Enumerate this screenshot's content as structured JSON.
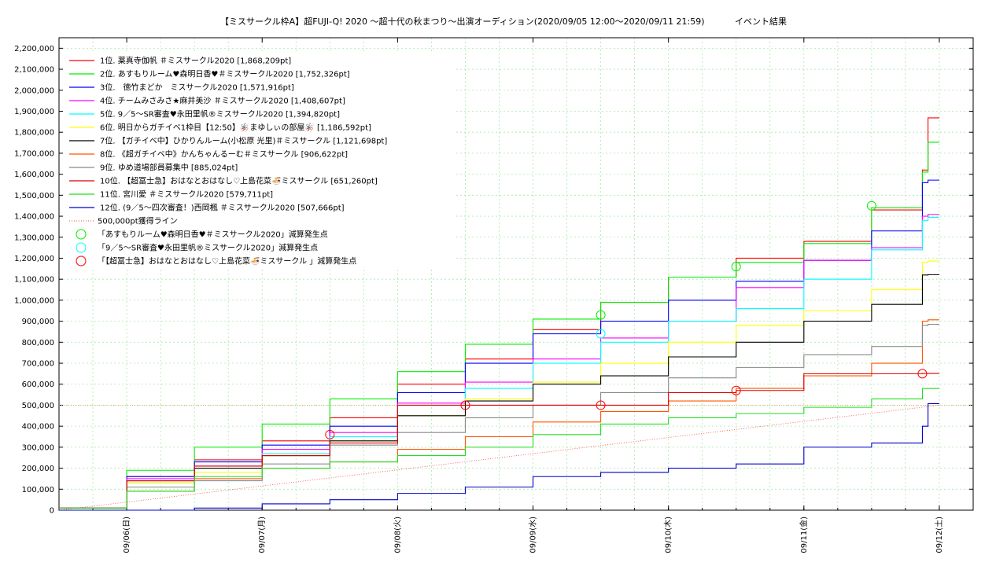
{
  "chart_data": {
    "type": "line",
    "title": "【ミスサークル枠A】超FUJI-Q! 2020 〜超十代の秋まつり〜出演オーディション(2020/09/05 12:00〜2020/09/11 21:59)           イベント結果",
    "xlabel": "",
    "ylabel": "",
    "x_range": [
      "2020/09/05 12:00",
      "2020/09/12 06:00"
    ],
    "ylim": [
      0,
      2250000
    ],
    "y_ticks": [
      0,
      100000,
      200000,
      300000,
      400000,
      500000,
      600000,
      700000,
      800000,
      900000,
      1000000,
      1100000,
      1200000,
      1300000,
      1400000,
      1500000,
      1600000,
      1700000,
      1800000,
      1900000,
      2000000,
      2100000,
      2200000
    ],
    "y_tick_labels": [
      "0",
      "100,000",
      "200,000",
      "300,000",
      "400,000",
      "500,000",
      "600,000",
      "700,000",
      "800,000",
      "900,000",
      "1,000,000",
      "1,100,000",
      "1,200,000",
      "1,300,000",
      "1,400,000",
      "1,500,000",
      "1,600,000",
      "1,700,000",
      "1,800,000",
      "1,900,000",
      "2,000,000",
      "2,100,000",
      "2,200,000"
    ],
    "x_ticks": [
      "2020/09/06",
      "2020/09/07",
      "2020/09/08",
      "2020/09/09",
      "2020/09/10",
      "2020/09/11",
      "2020/09/12"
    ],
    "x_tick_labels": [
      "09/06(日)",
      "09/07(月)",
      "09/08(火)",
      "09/09(水)",
      "09/10(木)",
      "09/11(金)",
      "09/12(土)"
    ],
    "grid": true,
    "legend_position": "top-left",
    "time_points": [
      "2020/09/05 12:00",
      "2020/09/06 00:00",
      "2020/09/06 12:00",
      "2020/09/07 00:00",
      "2020/09/07 12:00",
      "2020/09/08 00:00",
      "2020/09/08 12:00",
      "2020/09/09 00:00",
      "2020/09/09 12:00",
      "2020/09/10 00:00",
      "2020/09/10 12:00",
      "2020/09/11 00:00",
      "2020/09/11 12:00",
      "2020/09/11 21:00",
      "2020/09/11 22:00",
      "2020/09/12 00:00"
    ],
    "series": [
      {
        "name": "1位. 薬真寺伽帆 ＃ミスサークル2020 [1,868,209pt]",
        "color": "#ff0000",
        "values": [
          10000,
          160000,
          240000,
          330000,
          440000,
          600000,
          720000,
          860000,
          990000,
          1110000,
          1200000,
          1280000,
          1430000,
          1620000,
          1868209,
          1868209
        ]
      },
      {
        "name": "2位. あすもりルーム♥森明日香♥＃ミスサークル2020 [1,752,326pt]",
        "color": "#00ee00",
        "values": [
          10000,
          190000,
          300000,
          410000,
          530000,
          660000,
          790000,
          910000,
          990000,
          1110000,
          1180000,
          1270000,
          1440000,
          1610000,
          1752326,
          1752326
        ]
      },
      {
        "name": "3位.　徳竹まどか　ミスサークル2020 [1,571,916pt]",
        "color": "#0000ff",
        "values": [
          10000,
          160000,
          230000,
          310000,
          400000,
          560000,
          700000,
          840000,
          900000,
          1000000,
          1090000,
          1190000,
          1330000,
          1560000,
          1571916,
          1571916
        ]
      },
      {
        "name": "4位. チームみさみさ★麻井美沙 ＃ミスサークル2020 [1,408,607pt]",
        "color": "#ff00ff",
        "values": [
          10000,
          150000,
          210000,
          290000,
          370000,
          510000,
          610000,
          720000,
          820000,
          900000,
          1060000,
          1190000,
          1250000,
          1400000,
          1408607,
          1408607
        ]
      },
      {
        "name": "5位. 9／5〜SR審査♥永田里帆®︎ミスサークル2020 [1,394,820pt]",
        "color": "#00ffff",
        "values": [
          10000,
          130000,
          200000,
          270000,
          350000,
          500000,
          580000,
          700000,
          800000,
          900000,
          960000,
          1100000,
          1240000,
          1380000,
          1394820,
          1394820
        ]
      },
      {
        "name": "6位. 明日からガチイベ1枠目【12:50】🪅まゆしぃの部屋🪅 [1,186,592pt]",
        "color": "#ffff00",
        "values": [
          10000,
          130000,
          180000,
          260000,
          330000,
          450000,
          530000,
          610000,
          700000,
          800000,
          880000,
          950000,
          1050000,
          1180000,
          1186592,
          1186592
        ]
      },
      {
        "name": "7位. 【ガチイベ中】ひかりんルーム(小松原 光里)＃ミスサークル [1,121,698pt]",
        "color": "#000000",
        "values": [
          10000,
          140000,
          200000,
          260000,
          330000,
          450000,
          520000,
          600000,
          640000,
          730000,
          800000,
          900000,
          980000,
          1120000,
          1121698,
          1121698
        ]
      },
      {
        "name": "8位. 《超ガチイベ中》かんちゃんるーむ＃ミスサークル [906,622pt]",
        "color": "#ff5500",
        "values": [
          10000,
          90000,
          150000,
          200000,
          230000,
          290000,
          350000,
          420000,
          470000,
          520000,
          580000,
          640000,
          700000,
          900000,
          906622,
          906622
        ]
      },
      {
        "name": "9位. ゆめ道場部員募集中 [885,024pt]",
        "color": "#888888",
        "values": [
          10000,
          110000,
          140000,
          220000,
          310000,
          370000,
          440000,
          500000,
          560000,
          630000,
          680000,
          740000,
          780000,
          880000,
          885024,
          885024
        ]
      },
      {
        "name": "10位. 【超冨士急】おはなとおはなし♡上島花菜🍜ミスサークル  [651,260pt]",
        "color": "#dd0000",
        "values": [
          10000,
          140000,
          210000,
          260000,
          320000,
          500000,
          500000,
          500000,
          500000,
          560000,
          570000,
          650000,
          650000,
          651260,
          651260,
          651260
        ]
      },
      {
        "name": "11位. 宮川愛 ＃ミスサークル2020 [579,711pt]",
        "color": "#22dd22",
        "values": [
          10000,
          90000,
          160000,
          200000,
          230000,
          260000,
          300000,
          360000,
          410000,
          440000,
          460000,
          490000,
          530000,
          579711,
          579711,
          579711
        ]
      },
      {
        "name": "12位. (9／5〜四次審査！)西岡楓 ＃ミスサークル2020 [507,666pt]",
        "color": "#0000cc",
        "values": [
          0,
          0,
          10000,
          30000,
          50000,
          80000,
          110000,
          160000,
          180000,
          200000,
          220000,
          300000,
          320000,
          400000,
          507666,
          507666
        ]
      }
    ],
    "reference_line": {
      "name": "500,000pt獲得ライン",
      "color": "#ff4444",
      "y": 500000
    },
    "markers": [
      {
        "name": "「あすもりルーム♥森明日香♥＃ミスサークル2020」減算発生点",
        "color": "#00ee00",
        "points": [
          [
            "2020/09/09 12:00",
            930000
          ],
          [
            "2020/09/10 12:00",
            1160000
          ],
          [
            "2020/09/11 12:00",
            1450000
          ]
        ]
      },
      {
        "name": "「9／5〜SR審査♥永田里帆®︎ミスサークル2020」減算発生点",
        "color": "#00ffff",
        "points": [
          [
            "2020/09/09 12:00",
            840000
          ]
        ]
      },
      {
        "name": "「【超冨士急】おはなとおはなし♡上島花菜🍜ミスサークル 」減算発生点",
        "color": "#ff0000",
        "points": [
          [
            "2020/09/07 12:00",
            360000
          ],
          [
            "2020/09/08 12:00",
            500000
          ],
          [
            "2020/09/09 12:00",
            500000
          ],
          [
            "2020/09/10 12:00",
            570000
          ],
          [
            "2020/09/11 21:00",
            650000
          ]
        ]
      }
    ]
  }
}
